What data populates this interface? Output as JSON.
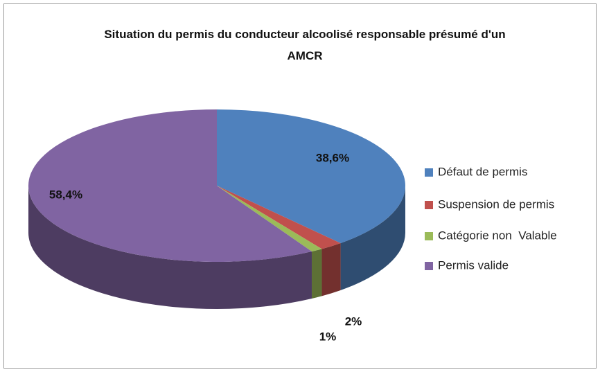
{
  "chart_data": {
    "type": "pie3d",
    "title": "Situation du permis du conducteur alcoolisé responsable présumé d'un AMCR",
    "categories": [
      "Défaut de permis",
      "Suspension de permis",
      "Catégorie non  Valable",
      "Permis valide"
    ],
    "values": [
      38.6,
      2,
      1,
      58.4
    ],
    "value_labels": [
      "38,6%",
      "2%",
      "1%",
      "58,4%"
    ],
    "colors": [
      "#4f81bd",
      "#c0504d",
      "#9bbb59",
      "#8064a2"
    ],
    "legend": "right"
  }
}
